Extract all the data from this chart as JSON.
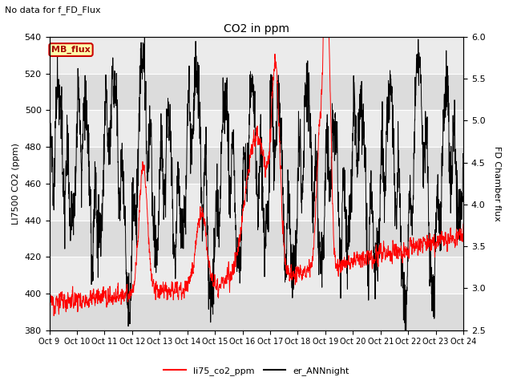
{
  "title": "CO2 in ppm",
  "subtitle": "No data for f_FD_Flux",
  "ylabel_left": "LI7500 CO2 (ppm)",
  "ylabel_right": "FD Chamber flux",
  "ylim_left": [
    380,
    540
  ],
  "ylim_right": [
    2.5,
    6.0
  ],
  "yticks_left": [
    380,
    400,
    420,
    440,
    460,
    480,
    500,
    520,
    540
  ],
  "yticks_right": [
    2.5,
    3.0,
    3.5,
    4.0,
    4.5,
    5.0,
    5.5,
    6.0
  ],
  "xtick_labels": [
    "Oct 9",
    "Oct 10",
    "Oct 11",
    "Oct 12",
    "Oct 13",
    "Oct 14",
    "Oct 15",
    "Oct 16",
    "Oct 17",
    "Oct 18",
    "Oct 19",
    "Oct 20",
    "Oct 21",
    "Oct 22",
    "Oct 23",
    "Oct 24"
  ],
  "legend_labels": [
    "li75_co2_ppm",
    "er_ANNnight"
  ],
  "legend_colors": [
    "red",
    "black"
  ],
  "inset_label": "MB_flux",
  "line_color_red": "#ff0000",
  "line_color_black": "#000000",
  "band_colors": [
    "#e8e8e8",
    "#f0f0f0"
  ],
  "n_points": 3000
}
